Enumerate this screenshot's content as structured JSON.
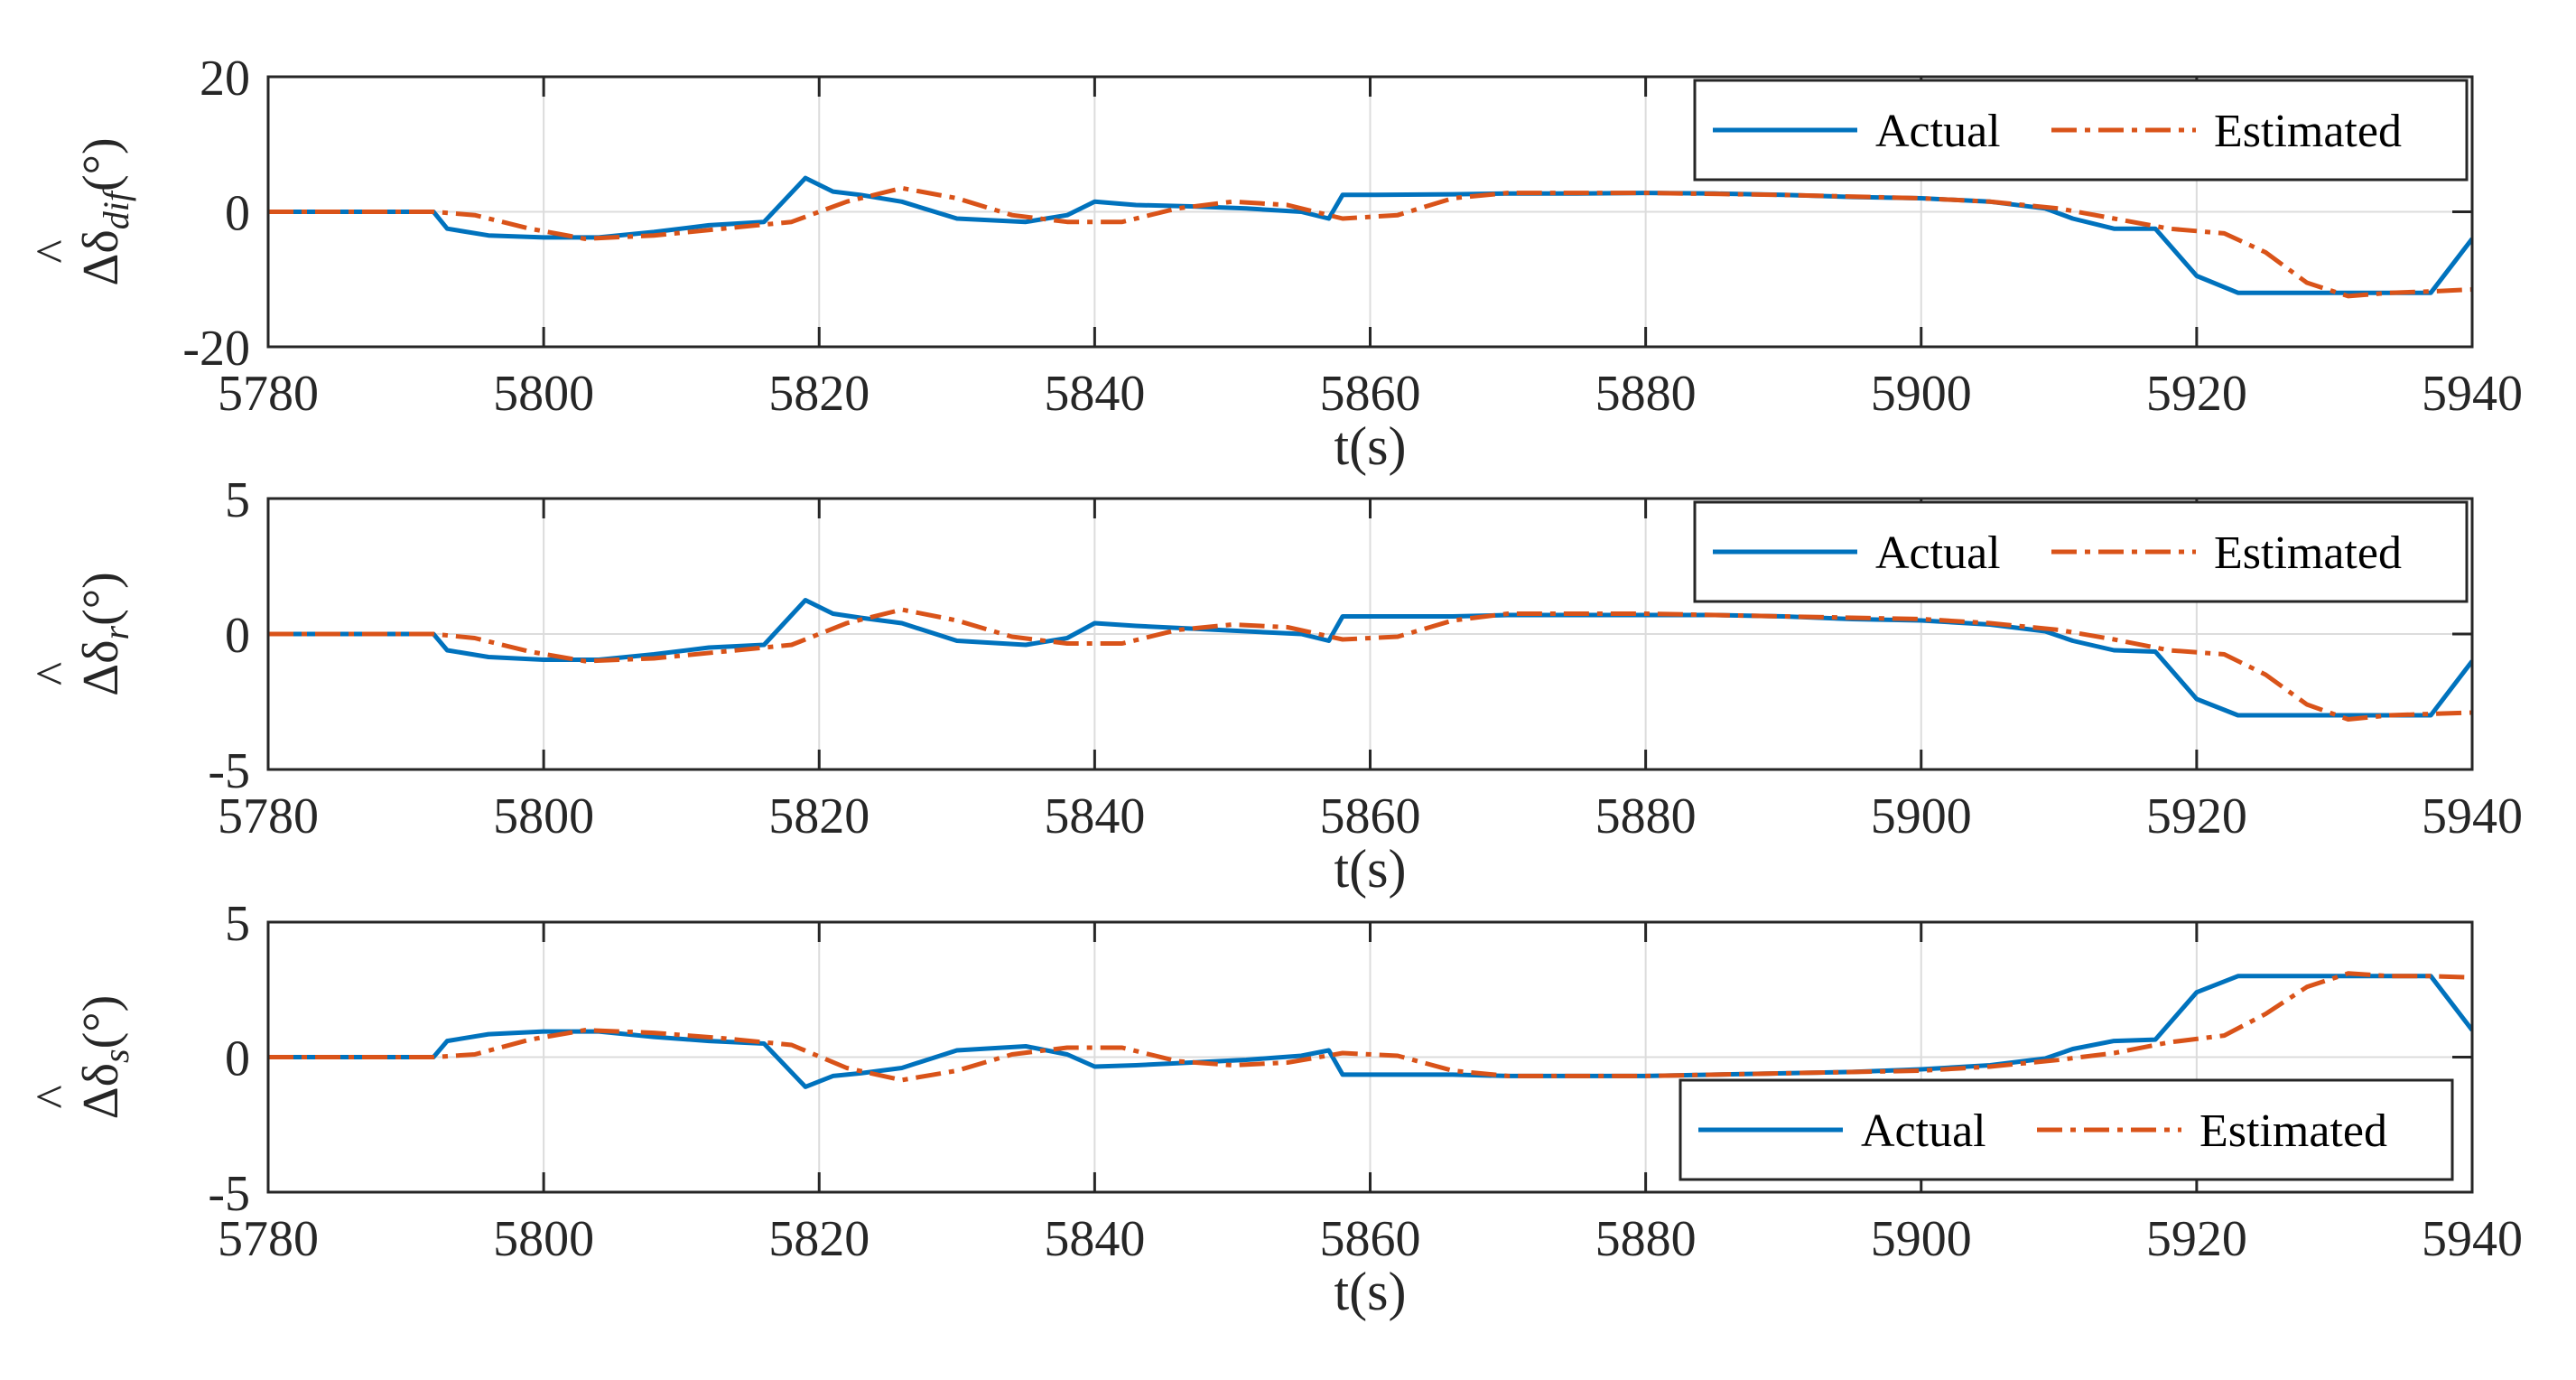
{
  "chart_data": [
    {
      "type": "line",
      "xlabel": "t(s)",
      "ylabel": {
        "main": "Δδ",
        "hat": "^",
        "sub": "dif",
        "unit": "(°)"
      },
      "xlim": [
        5780,
        5940
      ],
      "ylim": [
        -20,
        20
      ],
      "xticks": [
        "5780",
        "5800",
        "5820",
        "5840",
        "5860",
        "5880",
        "5900",
        "5920",
        "5940"
      ],
      "yticks": [
        "20",
        "0",
        "-20"
      ],
      "grid": true,
      "legend": {
        "position": "top-right",
        "entries": [
          "Actual",
          "Estimated"
        ]
      },
      "series": [
        {
          "name": "Actual",
          "color": "#0072BD",
          "style": "solid",
          "x": [
            5780,
            5792,
            5793,
            5796,
            5800,
            5804,
            5808,
            5812,
            5816,
            5819,
            5821,
            5823,
            5826,
            5830,
            5835,
            5838,
            5840,
            5843,
            5847,
            5851,
            5855,
            5857,
            5858,
            5860,
            5866,
            5870,
            5875,
            5880,
            5885,
            5890,
            5895,
            5900,
            5905,
            5909,
            5911,
            5914,
            5917,
            5920,
            5923,
            5927,
            5931,
            5935,
            5937,
            5940
          ],
          "y": [
            0,
            0,
            -2.5,
            -3.5,
            -3.8,
            -3.8,
            -3,
            -2,
            -1.5,
            5,
            3,
            2.5,
            1.5,
            -1,
            -1.5,
            -0.5,
            1.5,
            1,
            0.8,
            0.5,
            0,
            -1,
            2.5,
            2.5,
            2.6,
            2.7,
            2.7,
            2.8,
            2.7,
            2.5,
            2.2,
            2,
            1.5,
            0.5,
            -1,
            -2.5,
            -2.5,
            -9.5,
            -12,
            -12,
            -12,
            -12,
            -12,
            -4
          ]
        },
        {
          "name": "Estimated",
          "color": "#D95319",
          "style": "dash-dot",
          "x": [
            5780,
            5792,
            5795,
            5799,
            5803,
            5808,
            5813,
            5818,
            5822,
            5826,
            5830,
            5834,
            5838,
            5842,
            5846,
            5850,
            5854,
            5858,
            5862,
            5866,
            5870,
            5880,
            5890,
            5900,
            5905,
            5910,
            5914,
            5918,
            5922,
            5925,
            5928,
            5931,
            5934,
            5937,
            5940
          ],
          "y": [
            0,
            0,
            -0.5,
            -2.5,
            -4,
            -3.5,
            -2.5,
            -1.5,
            1.5,
            3.5,
            2,
            -0.5,
            -1.5,
            -1.5,
            0.5,
            1.5,
            1,
            -1,
            -0.5,
            2,
            2.8,
            2.8,
            2.5,
            2,
            1.5,
            0.5,
            -1,
            -2.5,
            -3.2,
            -6,
            -10.5,
            -12.5,
            -12,
            -11.8,
            -11.5
          ]
        }
      ]
    },
    {
      "type": "line",
      "xlabel": "t(s)",
      "ylabel": {
        "main": "Δδ",
        "hat": "^",
        "sub": "r",
        "unit": "(°)"
      },
      "xlim": [
        5780,
        5940
      ],
      "ylim": [
        -5,
        5
      ],
      "xticks": [
        "5780",
        "5800",
        "5820",
        "5840",
        "5860",
        "5880",
        "5900",
        "5920",
        "5940"
      ],
      "yticks": [
        "5",
        "0",
        "-5"
      ],
      "grid": true,
      "legend": {
        "position": "top-right",
        "entries": [
          "Actual",
          "Estimated"
        ]
      },
      "series": [
        {
          "name": "Actual",
          "color": "#0072BD",
          "style": "solid",
          "x": [
            5780,
            5792,
            5793,
            5796,
            5800,
            5804,
            5808,
            5812,
            5816,
            5819,
            5821,
            5823,
            5826,
            5830,
            5835,
            5838,
            5840,
            5843,
            5847,
            5851,
            5855,
            5857,
            5858,
            5860,
            5866,
            5870,
            5875,
            5880,
            5885,
            5890,
            5895,
            5900,
            5905,
            5909,
            5911,
            5914,
            5917,
            5920,
            5923,
            5927,
            5931,
            5935,
            5937,
            5940
          ],
          "y": [
            0,
            0,
            -0.6,
            -0.85,
            -0.95,
            -0.95,
            -0.75,
            -0.5,
            -0.4,
            1.25,
            0.75,
            0.6,
            0.4,
            -0.25,
            -0.4,
            -0.15,
            0.4,
            0.3,
            0.2,
            0.1,
            0,
            -0.25,
            0.65,
            0.65,
            0.65,
            0.7,
            0.7,
            0.7,
            0.7,
            0.65,
            0.55,
            0.5,
            0.35,
            0.1,
            -0.25,
            -0.6,
            -0.65,
            -2.4,
            -3,
            -3,
            -3,
            -3,
            -3,
            -1
          ]
        },
        {
          "name": "Estimated",
          "color": "#D95319",
          "style": "dash-dot",
          "x": [
            5780,
            5792,
            5795,
            5799,
            5803,
            5808,
            5813,
            5818,
            5822,
            5826,
            5830,
            5834,
            5838,
            5842,
            5846,
            5850,
            5854,
            5858,
            5862,
            5866,
            5870,
            5880,
            5890,
            5900,
            5905,
            5910,
            5914,
            5918,
            5922,
            5925,
            5928,
            5931,
            5934,
            5937,
            5940
          ],
          "y": [
            0,
            0,
            -0.15,
            -0.65,
            -1,
            -0.9,
            -0.65,
            -0.4,
            0.4,
            0.9,
            0.5,
            -0.1,
            -0.35,
            -0.35,
            0.15,
            0.35,
            0.25,
            -0.2,
            -0.1,
            0.5,
            0.75,
            0.75,
            0.65,
            0.55,
            0.4,
            0.15,
            -0.2,
            -0.6,
            -0.75,
            -1.5,
            -2.6,
            -3.15,
            -3,
            -2.95,
            -2.9
          ]
        }
      ]
    },
    {
      "type": "line",
      "xlabel": "t(s)",
      "ylabel": {
        "main": "Δδ",
        "hat": "^",
        "sub": "s",
        "unit": "(°)"
      },
      "xlim": [
        5780,
        5940
      ],
      "ylim": [
        -5,
        5
      ],
      "xticks": [
        "5780",
        "5800",
        "5820",
        "5840",
        "5860",
        "5880",
        "5900",
        "5920",
        "5940"
      ],
      "yticks": [
        "5",
        "0",
        "-5"
      ],
      "grid": true,
      "legend": {
        "position": "bottom-right",
        "entries": [
          "Actual",
          "Estimated"
        ]
      },
      "series": [
        {
          "name": "Actual",
          "color": "#0072BD",
          "style": "solid",
          "x": [
            5780,
            5792,
            5793,
            5796,
            5800,
            5804,
            5808,
            5812,
            5816,
            5819,
            5821,
            5823,
            5826,
            5830,
            5835,
            5838,
            5840,
            5843,
            5847,
            5851,
            5855,
            5857,
            5858,
            5860,
            5866,
            5870,
            5875,
            5880,
            5885,
            5890,
            5895,
            5900,
            5905,
            5909,
            5911,
            5914,
            5917,
            5920,
            5923,
            5927,
            5931,
            5935,
            5937,
            5940
          ],
          "y": [
            0,
            0,
            0.6,
            0.85,
            0.95,
            0.95,
            0.75,
            0.6,
            0.5,
            -1.1,
            -0.7,
            -0.6,
            -0.4,
            0.25,
            0.4,
            0.1,
            -0.35,
            -0.3,
            -0.2,
            -0.1,
            0.05,
            0.25,
            -0.65,
            -0.65,
            -0.65,
            -0.7,
            -0.7,
            -0.7,
            -0.65,
            -0.6,
            -0.55,
            -0.45,
            -0.3,
            -0.05,
            0.3,
            0.6,
            0.65,
            2.4,
            3,
            3,
            3,
            3,
            3,
            1
          ]
        },
        {
          "name": "Estimated",
          "color": "#D95319",
          "style": "dash-dot",
          "x": [
            5780,
            5792,
            5795,
            5799,
            5803,
            5808,
            5813,
            5818,
            5822,
            5826,
            5830,
            5834,
            5838,
            5842,
            5846,
            5850,
            5854,
            5858,
            5862,
            5866,
            5870,
            5880,
            5890,
            5900,
            5905,
            5910,
            5914,
            5918,
            5922,
            5925,
            5928,
            5931,
            5934,
            5937,
            5940
          ],
          "y": [
            0,
            0,
            0.1,
            0.65,
            1,
            0.9,
            0.7,
            0.45,
            -0.4,
            -0.85,
            -0.5,
            0.1,
            0.35,
            0.35,
            -0.15,
            -0.3,
            -0.2,
            0.15,
            0.05,
            -0.5,
            -0.7,
            -0.7,
            -0.6,
            -0.5,
            -0.35,
            -0.1,
            0.15,
            0.55,
            0.8,
            1.6,
            2.6,
            3.1,
            3,
            3,
            2.95
          ]
        }
      ]
    }
  ]
}
